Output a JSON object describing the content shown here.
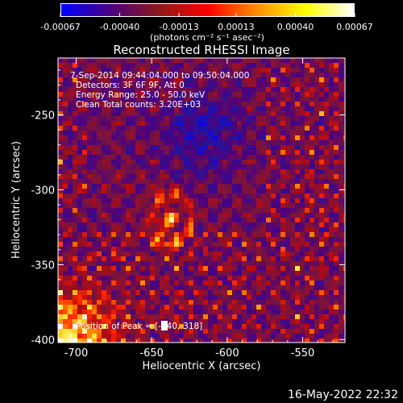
{
  "chart_data": {
    "type": "heatmap",
    "title": "Reconstructed RHESSI Image",
    "xlabel": "Heliocentric X (arcsec)",
    "ylabel": "Heliocentric Y (arcsec)",
    "xlim": [
      -712,
      -522
    ],
    "ylim": [
      -402,
      -212
    ],
    "x_ticks": [
      "-700",
      "-650",
      "-600",
      "-550"
    ],
    "x_tick_values": [
      -700,
      -650,
      -600,
      -550
    ],
    "y_ticks": [
      "-250",
      "-300",
      "-350",
      "-400"
    ],
    "y_tick_values": [
      -250,
      -300,
      -350,
      -400
    ],
    "colorbar": {
      "ticks": [
        "-0.00067",
        "-0.00040",
        "-0.00013",
        "0.00013",
        "0.00040",
        "0.00067"
      ],
      "tick_values": [
        -0.00067,
        -0.0004,
        -0.00013,
        0.00013,
        0.0004,
        0.00067
      ],
      "unit_label": "(photons cm⁻² s⁻¹ asec⁻²)",
      "colors": [
        "#0000ff",
        "#4b0082",
        "#8b1a1a",
        "#ff0000",
        "#ff8c00",
        "#ffff00",
        "#ffffff"
      ]
    },
    "info": {
      "time_range": "7-Sep-2014 09:44:04.000 to 09:50:04.000",
      "detectors": "Detectors: 3F 6F 9F, Att 0",
      "energy": "Energy Range: 25.0 - 50.0 keV",
      "method": "Clean     Total counts: 3.20E+03",
      "peak": "Position of Peak = [-640,-318]"
    },
    "peak": {
      "x": -640,
      "y": -318
    },
    "grid": false
  },
  "footer": {
    "timestamp": "16-May-2022 22:32"
  }
}
